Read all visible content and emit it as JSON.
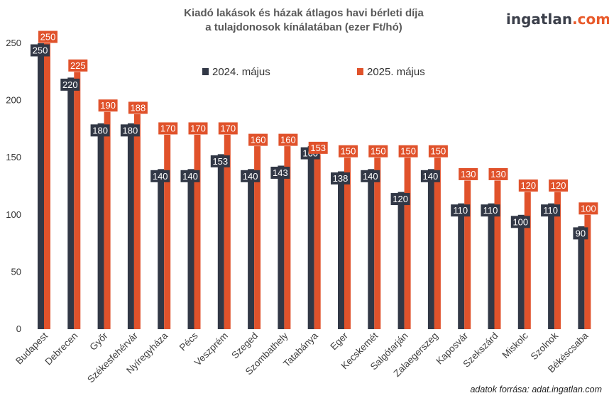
{
  "title": {
    "line1": "Kiadó lakások és házak átlagos havi bérleti díja",
    "line2": "a tulajdonosok kínálatában (ezer Ft/hó)"
  },
  "logo": {
    "part1": "ingatlan",
    "part2": ".com"
  },
  "source": "adatok forrása: adat.ingatlan.com",
  "chart_data": {
    "type": "bar",
    "title": "Kiadó lakások és házak átlagos havi bérleti díja a tulajdonosok kínálatában (ezer Ft/hó)",
    "categories": [
      "Budapest",
      "Debrecen",
      "Győr",
      "Székesfehérvár",
      "Nyíregyháza",
      "Pécs",
      "Veszprém",
      "Szeged",
      "Szombathely",
      "Tatabánya",
      "Eger",
      "Kecskemét",
      "Salgótarján",
      "Zalaegerszeg",
      "Kaposvár",
      "Szekszárd",
      "Miskolc",
      "Szolnok",
      "Békéscsaba"
    ],
    "series": [
      {
        "name": "2024. május",
        "color": "#323846",
        "values": [
          250,
          220,
          180,
          180,
          140,
          140,
          153,
          140,
          143,
          160,
          138,
          140,
          120,
          140,
          110,
          110,
          100,
          110,
          90
        ]
      },
      {
        "name": "2025. május",
        "color": "#e0522b",
        "values": [
          250,
          225,
          190,
          188,
          170,
          170,
          170,
          160,
          160,
          153,
          150,
          150,
          150,
          150,
          130,
          130,
          120,
          120,
          100
        ]
      }
    ],
    "yticks": [
      0,
      50,
      100,
      150,
      200,
      250
    ],
    "ylim": [
      0,
      250
    ],
    "xlabel": "",
    "ylabel": "",
    "grid": false,
    "legend": "top-center"
  }
}
